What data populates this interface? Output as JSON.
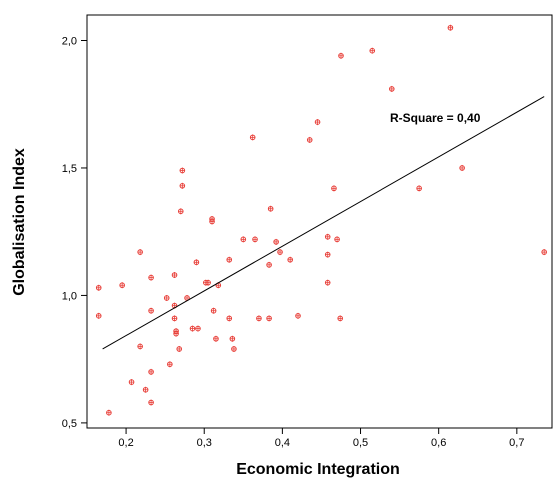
{
  "chart_data": {
    "type": "scatter",
    "title": "",
    "xlabel": "Economic Integration",
    "ylabel": "Globalisation Index",
    "xlim": [
      0.15,
      0.745
    ],
    "ylim": [
      0.48,
      2.1
    ],
    "x_ticks": [
      0.2,
      0.3,
      0.4,
      0.5,
      0.6,
      0.7
    ],
    "x_tick_labels": [
      "0,2",
      "0,3",
      "0,4",
      "0,5",
      "0,6",
      "0,7"
    ],
    "y_ticks": [
      0.5,
      1.0,
      1.5,
      2.0
    ],
    "y_tick_labels": [
      "0,5",
      "1,0",
      "1,5",
      "2,0"
    ],
    "grid": false,
    "legend": "none",
    "marker_color": "#e8403a",
    "line_color": "#000000",
    "annotation": "R-Square = 0,40",
    "fit_line": {
      "x": [
        0.17,
        0.735
      ],
      "y": [
        0.79,
        1.78
      ]
    },
    "points": [
      {
        "x": 0.165,
        "y": 1.03
      },
      {
        "x": 0.165,
        "y": 0.92
      },
      {
        "x": 0.178,
        "y": 0.54
      },
      {
        "x": 0.195,
        "y": 1.04
      },
      {
        "x": 0.207,
        "y": 0.66
      },
      {
        "x": 0.218,
        "y": 1.17
      },
      {
        "x": 0.218,
        "y": 0.8
      },
      {
        "x": 0.225,
        "y": 0.63
      },
      {
        "x": 0.232,
        "y": 1.07
      },
      {
        "x": 0.232,
        "y": 0.94
      },
      {
        "x": 0.232,
        "y": 0.7
      },
      {
        "x": 0.232,
        "y": 0.58
      },
      {
        "x": 0.252,
        "y": 0.99
      },
      {
        "x": 0.256,
        "y": 0.73
      },
      {
        "x": 0.262,
        "y": 1.08
      },
      {
        "x": 0.262,
        "y": 0.96
      },
      {
        "x": 0.262,
        "y": 0.91
      },
      {
        "x": 0.264,
        "y": 0.86
      },
      {
        "x": 0.264,
        "y": 0.85
      },
      {
        "x": 0.268,
        "y": 0.79
      },
      {
        "x": 0.272,
        "y": 1.49
      },
      {
        "x": 0.272,
        "y": 1.43
      },
      {
        "x": 0.27,
        "y": 1.33
      },
      {
        "x": 0.278,
        "y": 0.99
      },
      {
        "x": 0.285,
        "y": 0.87
      },
      {
        "x": 0.29,
        "y": 1.13
      },
      {
        "x": 0.292,
        "y": 0.87
      },
      {
        "x": 0.302,
        "y": 1.05
      },
      {
        "x": 0.305,
        "y": 1.05
      },
      {
        "x": 0.31,
        "y": 1.3
      },
      {
        "x": 0.31,
        "y": 1.29
      },
      {
        "x": 0.312,
        "y": 0.94
      },
      {
        "x": 0.315,
        "y": 0.83
      },
      {
        "x": 0.318,
        "y": 1.04
      },
      {
        "x": 0.332,
        "y": 1.14
      },
      {
        "x": 0.332,
        "y": 0.91
      },
      {
        "x": 0.336,
        "y": 0.83
      },
      {
        "x": 0.338,
        "y": 0.79
      },
      {
        "x": 0.35,
        "y": 1.22
      },
      {
        "x": 0.362,
        "y": 1.62
      },
      {
        "x": 0.365,
        "y": 1.22
      },
      {
        "x": 0.37,
        "y": 0.91
      },
      {
        "x": 0.383,
        "y": 1.12
      },
      {
        "x": 0.383,
        "y": 0.91
      },
      {
        "x": 0.385,
        "y": 1.34
      },
      {
        "x": 0.392,
        "y": 1.21
      },
      {
        "x": 0.397,
        "y": 1.17
      },
      {
        "x": 0.41,
        "y": 1.14
      },
      {
        "x": 0.42,
        "y": 0.92
      },
      {
        "x": 0.435,
        "y": 1.61
      },
      {
        "x": 0.445,
        "y": 1.68
      },
      {
        "x": 0.458,
        "y": 1.23
      },
      {
        "x": 0.458,
        "y": 1.16
      },
      {
        "x": 0.458,
        "y": 1.05
      },
      {
        "x": 0.466,
        "y": 1.42
      },
      {
        "x": 0.47,
        "y": 1.22
      },
      {
        "x": 0.474,
        "y": 0.91
      },
      {
        "x": 0.475,
        "y": 1.94
      },
      {
        "x": 0.515,
        "y": 1.96
      },
      {
        "x": 0.54,
        "y": 1.81
      },
      {
        "x": 0.575,
        "y": 1.42
      },
      {
        "x": 0.615,
        "y": 2.05
      },
      {
        "x": 0.63,
        "y": 1.5
      },
      {
        "x": 0.735,
        "y": 1.17
      }
    ]
  }
}
